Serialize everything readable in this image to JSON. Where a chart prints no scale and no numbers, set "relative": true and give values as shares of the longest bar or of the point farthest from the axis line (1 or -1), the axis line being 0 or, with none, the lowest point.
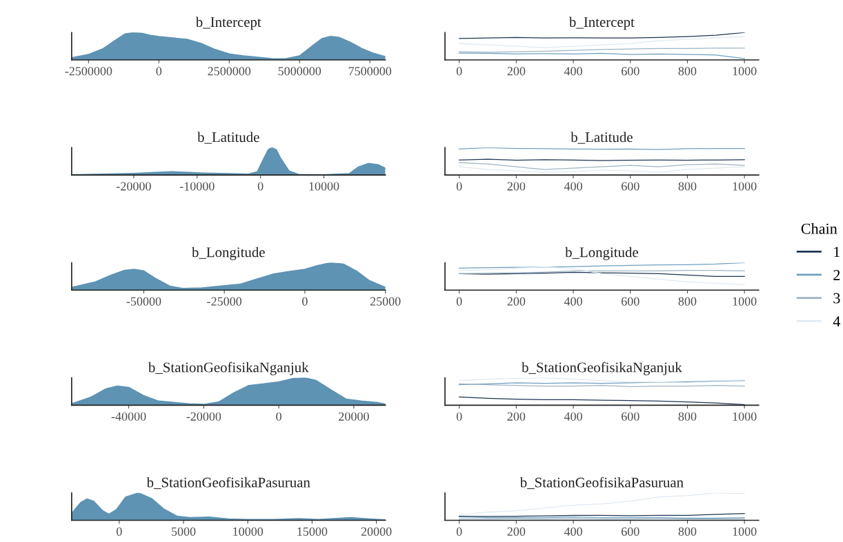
{
  "chart_data": [
    {
      "type": "area",
      "title": "b_Intercept",
      "relative": true,
      "tick_labels": "x",
      "xlim": [
        -3100000,
        8050000
      ],
      "xticks": [
        -2500000,
        0,
        2500000,
        5000000,
        7500000
      ],
      "x": [
        -3100000,
        -2500000,
        -2000000,
        -1500000,
        -1200000,
        -900000,
        -600000,
        -300000,
        0,
        500000,
        1000000,
        1500000,
        2000000,
        2500000,
        3000000,
        3500000,
        4000000,
        4500000,
        5000000,
        5500000,
        5800000,
        6100000,
        6400000,
        6800000,
        7200000,
        7600000,
        8050000
      ],
      "series": [
        {
          "color": "#5e93b3",
          "values": [
            0.08,
            0.2,
            0.4,
            0.75,
            0.95,
            1.0,
            0.97,
            0.9,
            0.85,
            0.8,
            0.75,
            0.6,
            0.38,
            0.22,
            0.15,
            0.1,
            0.05,
            0.04,
            0.15,
            0.55,
            0.78,
            0.86,
            0.82,
            0.65,
            0.42,
            0.25,
            0.12
          ]
        }
      ]
    },
    {
      "type": "line",
      "title": "b_Intercept",
      "relative": true,
      "tick_labels": "x",
      "xlim": [
        -50,
        1050
      ],
      "xticks": [
        0,
        200,
        400,
        600,
        800,
        1000
      ],
      "x": [
        0,
        100,
        200,
        300,
        400,
        500,
        600,
        700,
        800,
        900,
        1000
      ],
      "series": [
        {
          "color": "#1f3553",
          "values": [
            0.78,
            0.8,
            0.82,
            0.8,
            0.81,
            0.8,
            0.8,
            0.82,
            0.85,
            0.9,
            1.0
          ]
        },
        {
          "color": "#6f9fbf",
          "values": [
            0.25,
            0.24,
            0.22,
            0.23,
            0.22,
            0.24,
            0.2,
            0.22,
            0.2,
            0.18,
            0.05
          ]
        },
        {
          "color": "#9eb4c6",
          "values": [
            0.3,
            0.28,
            0.3,
            0.32,
            0.35,
            0.38,
            0.4,
            0.42,
            0.42,
            0.43,
            0.43
          ]
        },
        {
          "color": "#dfe9f1",
          "values": [
            0.6,
            0.55,
            0.5,
            0.45,
            0.5,
            0.55,
            0.6,
            0.7,
            0.75,
            0.8,
            0.85
          ]
        }
      ]
    },
    {
      "type": "area",
      "title": "b_Latitude",
      "relative": true,
      "tick_labels": "x",
      "xlim": [
        -29800,
        19700
      ],
      "xticks": [
        -20000,
        -10000,
        0,
        10000
      ],
      "x": [
        -29800,
        -25000,
        -20000,
        -16000,
        -14000,
        -12000,
        -9000,
        -5000,
        -2000,
        -500,
        500,
        1200,
        1800,
        2500,
        3200,
        4500,
        6000,
        10000,
        14000,
        15500,
        17000,
        18500,
        19700
      ],
      "series": [
        {
          "color": "#5e93b3",
          "values": [
            0.01,
            0.03,
            0.06,
            0.1,
            0.12,
            0.1,
            0.07,
            0.05,
            0.03,
            0.12,
            0.6,
            0.92,
            1.0,
            0.92,
            0.6,
            0.15,
            0.02,
            0.01,
            0.05,
            0.3,
            0.42,
            0.38,
            0.25
          ]
        }
      ]
    },
    {
      "type": "line",
      "title": "b_Latitude",
      "relative": true,
      "tick_labels": "x",
      "xlim": [
        -50,
        1050
      ],
      "xticks": [
        0,
        200,
        400,
        600,
        800,
        1000
      ],
      "x": [
        0,
        100,
        200,
        300,
        400,
        500,
        600,
        700,
        800,
        900,
        1000
      ],
      "series": [
        {
          "color": "#1f3553",
          "values": [
            0.55,
            0.58,
            0.54,
            0.56,
            0.55,
            0.53,
            0.54,
            0.55,
            0.54,
            0.55,
            0.56
          ]
        },
        {
          "color": "#6f9fbf",
          "values": [
            0.95,
            1.0,
            0.97,
            0.96,
            0.95,
            0.94,
            0.95,
            0.93,
            0.96,
            0.97,
            0.97
          ]
        },
        {
          "color": "#9eb4c6",
          "values": [
            0.45,
            0.4,
            0.3,
            0.2,
            0.25,
            0.3,
            0.35,
            0.3,
            0.38,
            0.4,
            0.35
          ]
        },
        {
          "color": "#dfe9f1",
          "values": [
            0.3,
            0.2,
            0.15,
            0.1,
            0.12,
            0.18,
            0.15,
            0.1,
            0.2,
            0.25,
            0.3
          ]
        }
      ]
    },
    {
      "type": "area",
      "title": "b_Longitude",
      "relative": true,
      "tick_labels": "x",
      "xlim": [
        -72400,
        25000
      ],
      "xticks": [
        -50000,
        -25000,
        0,
        25000
      ],
      "x": [
        -72400,
        -65000,
        -60000,
        -56000,
        -53000,
        -50000,
        -46000,
        -42000,
        -38000,
        -32000,
        -26000,
        -20000,
        -15000,
        -10000,
        -5000,
        0,
        4000,
        8000,
        12000,
        16000,
        20000,
        25000
      ],
      "series": [
        {
          "color": "#5e93b3",
          "values": [
            0.1,
            0.3,
            0.55,
            0.72,
            0.76,
            0.7,
            0.4,
            0.15,
            0.06,
            0.08,
            0.15,
            0.22,
            0.4,
            0.58,
            0.68,
            0.76,
            0.9,
            1.0,
            0.95,
            0.7,
            0.35,
            0.1
          ]
        }
      ]
    },
    {
      "type": "line",
      "title": "b_Longitude",
      "relative": true,
      "tick_labels": "x",
      "xlim": [
        -50,
        1050
      ],
      "xticks": [
        0,
        200,
        400,
        600,
        800,
        1000
      ],
      "legend": "right",
      "legend_title": "Chain",
      "x": [
        0,
        100,
        200,
        300,
        400,
        500,
        600,
        700,
        800,
        900,
        1000
      ],
      "series": [
        {
          "name": "1",
          "color": "#1f3553",
          "values": [
            0.6,
            0.58,
            0.6,
            0.62,
            0.65,
            0.63,
            0.62,
            0.6,
            0.55,
            0.5,
            0.5
          ]
        },
        {
          "name": "2",
          "color": "#6f9fbf",
          "values": [
            0.8,
            0.82,
            0.83,
            0.84,
            0.86,
            0.88,
            0.9,
            0.92,
            0.93,
            0.95,
            1.0
          ]
        },
        {
          "name": "3",
          "color": "#9eb4c6",
          "values": [
            0.6,
            0.62,
            0.63,
            0.66,
            0.7,
            0.7,
            0.7,
            0.7,
            0.72,
            0.72,
            0.7
          ]
        },
        {
          "name": "4",
          "color": "#dfe9f1",
          "values": [
            0.7,
            0.75,
            0.8,
            0.85,
            0.78,
            0.6,
            0.5,
            0.4,
            0.3,
            0.25,
            0.2
          ]
        }
      ]
    },
    {
      "type": "area",
      "title": "b_StationGeofisikaNganjuk",
      "relative": true,
      "tick_labels": "x",
      "xlim": [
        -55200,
        28400
      ],
      "xticks": [
        -40000,
        -20000,
        0,
        20000
      ],
      "x": [
        -55200,
        -50000,
        -46000,
        -43000,
        -40000,
        -36000,
        -32000,
        -28000,
        -24000,
        -20000,
        -16000,
        -12000,
        -8000,
        -4000,
        0,
        4000,
        7000,
        10000,
        14000,
        18000,
        22000,
        26000,
        28400
      ],
      "series": [
        {
          "color": "#5e93b3",
          "values": [
            0.05,
            0.3,
            0.6,
            0.7,
            0.65,
            0.35,
            0.15,
            0.1,
            0.05,
            0.03,
            0.12,
            0.45,
            0.72,
            0.78,
            0.85,
            0.98,
            1.0,
            0.9,
            0.55,
            0.22,
            0.15,
            0.1,
            0.04
          ]
        }
      ]
    },
    {
      "type": "line",
      "title": "b_StationGeofisikaNganjuk",
      "relative": true,
      "tick_labels": "x",
      "xlim": [
        -50,
        1050
      ],
      "xticks": [
        0,
        200,
        400,
        600,
        800,
        1000
      ],
      "x": [
        0,
        100,
        200,
        300,
        400,
        500,
        600,
        700,
        800,
        900,
        1000
      ],
      "series": [
        {
          "color": "#1f3553",
          "values": [
            0.3,
            0.25,
            0.22,
            0.2,
            0.2,
            0.18,
            0.17,
            0.15,
            0.12,
            0.08,
            0.02
          ]
        },
        {
          "color": "#6f9fbf",
          "values": [
            0.75,
            0.78,
            0.82,
            0.8,
            0.82,
            0.8,
            0.82,
            0.84,
            0.85,
            0.88,
            0.9
          ]
        },
        {
          "color": "#9eb4c6",
          "values": [
            0.78,
            0.75,
            0.72,
            0.7,
            0.7,
            0.72,
            0.68,
            0.7,
            0.7,
            0.72,
            0.7
          ]
        },
        {
          "color": "#dfe9f1",
          "values": [
            0.9,
            0.95,
            0.98,
            1.0,
            0.95,
            0.9,
            0.85,
            0.85,
            0.88,
            0.9,
            0.92
          ]
        }
      ]
    },
    {
      "type": "area",
      "title": "b_StationGeofisikaPasuruan",
      "relative": true,
      "tick_labels": "x",
      "xlim": [
        -3700,
        20700
      ],
      "xticks": [
        0,
        5000,
        10000,
        15000,
        20000
      ],
      "x": [
        -3700,
        -3000,
        -2500,
        -2000,
        -1300,
        -800,
        -200,
        500,
        1500,
        2500,
        3500,
        4500,
        5500,
        7000,
        8500,
        10000,
        12000,
        14000,
        15500,
        18000,
        19500,
        20700
      ],
      "series": [
        {
          "color": "#5e93b3",
          "values": [
            0.25,
            0.65,
            0.78,
            0.7,
            0.35,
            0.22,
            0.4,
            0.85,
            1.0,
            0.8,
            0.4,
            0.15,
            0.1,
            0.12,
            0.05,
            0.03,
            0.03,
            0.06,
            0.03,
            0.1,
            0.05,
            0.02
          ]
        }
      ]
    },
    {
      "type": "line",
      "title": "b_StationGeofisikaPasuruan",
      "relative": true,
      "tick_labels": "x",
      "xlim": [
        -50,
        1050
      ],
      "xticks": [
        0,
        200,
        400,
        600,
        800,
        1000
      ],
      "x": [
        0,
        100,
        200,
        300,
        400,
        500,
        600,
        700,
        800,
        900,
        1000
      ],
      "series": [
        {
          "color": "#1f3553",
          "values": [
            0.15,
            0.14,
            0.15,
            0.16,
            0.18,
            0.18,
            0.17,
            0.18,
            0.18,
            0.22,
            0.25
          ]
        },
        {
          "color": "#6f9fbf",
          "values": [
            0.12,
            0.1,
            0.1,
            0.1,
            0.12,
            0.1,
            0.1,
            0.1,
            0.08,
            0.08,
            0.1
          ]
        },
        {
          "color": "#9eb4c6",
          "values": [
            0.05,
            0.05,
            0.06,
            0.05,
            0.06,
            0.05,
            0.05,
            0.06,
            0.05,
            0.05,
            0.05
          ]
        },
        {
          "color": "#dfe9f1",
          "values": [
            0.2,
            0.3,
            0.35,
            0.45,
            0.55,
            0.6,
            0.7,
            0.85,
            0.9,
            1.0,
            0.97
          ]
        }
      ]
    }
  ]
}
